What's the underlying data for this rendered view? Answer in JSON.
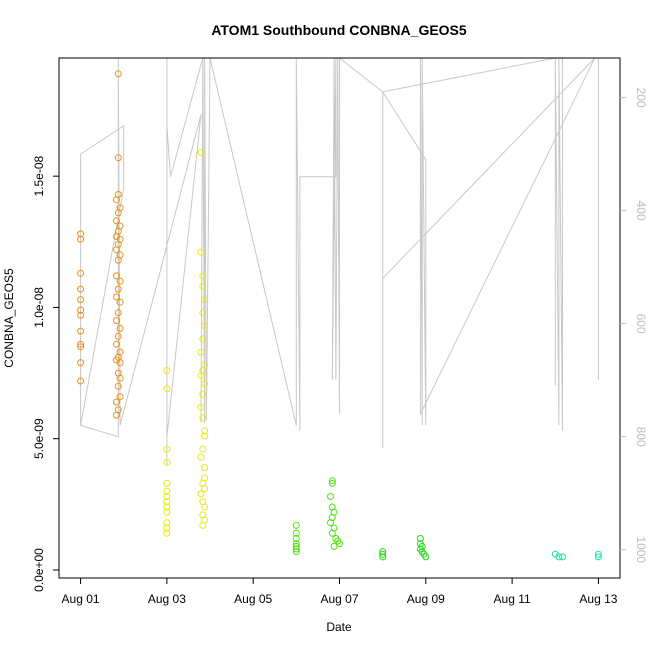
{
  "chart_data": {
    "type": "scatter",
    "title": "ATOM1 Southbound CONBNA_GEOS5",
    "xlabel": "Date",
    "ylabel": "CONBNA_GEOS5",
    "x_axis_kind": "date",
    "xlim": [
      "2016-07-31T12:00",
      "2016-08-13T12:00"
    ],
    "x_ticks": [
      {
        "x": "2016-08-01",
        "label": "Aug 01"
      },
      {
        "x": "2016-08-03",
        "label": "Aug 03"
      },
      {
        "x": "2016-08-05",
        "label": "Aug 05"
      },
      {
        "x": "2016-08-07",
        "label": "Aug 07"
      },
      {
        "x": "2016-08-09",
        "label": "Aug 09"
      },
      {
        "x": "2016-08-11",
        "label": "Aug 11"
      },
      {
        "x": "2016-08-13",
        "label": "Aug 13"
      }
    ],
    "ylim": [
      0,
      1.95e-08
    ],
    "y_ticks": [
      {
        "y": 0,
        "label": "0.0e+00"
      },
      {
        "y": 5e-09,
        "label": "5.0e-09"
      },
      {
        "y": 1e-08,
        "label": "1.0e-08"
      },
      {
        "y": 1.5e-08,
        "label": "1.5e-08"
      }
    ],
    "right_axis": {
      "scale": "reversed",
      "lim": [
        130,
        1050
      ],
      "color": "#bdbdbd",
      "ticks": [
        {
          "y": 200,
          "label": "200"
        },
        {
          "y": 400,
          "label": "400"
        },
        {
          "y": 600,
          "label": "600"
        },
        {
          "y": 800,
          "label": "800"
        },
        {
          "y": 1000,
          "label": "1000"
        }
      ]
    },
    "grid": false,
    "marker": "open-circle",
    "series": [
      {
        "color": "#f0900e",
        "points": [
          [
            "2016-08-01T00:00",
            1.28e-08
          ],
          [
            "2016-08-01T00:00",
            1.26e-08
          ],
          [
            "2016-08-01T00:00",
            1.13e-08
          ],
          [
            "2016-08-01T00:00",
            1.07e-08
          ],
          [
            "2016-08-01T00:00",
            1.03e-08
          ],
          [
            "2016-08-01T00:00",
            9.9e-09
          ],
          [
            "2016-08-01T00:00",
            9.7e-09
          ],
          [
            "2016-08-01T00:00",
            9.1e-09
          ],
          [
            "2016-08-01T00:00",
            8.6e-09
          ],
          [
            "2016-08-01T00:00",
            8.5e-09
          ],
          [
            "2016-08-01T00:00",
            7.9e-09
          ],
          [
            "2016-08-01T00:00",
            7.2e-09
          ],
          [
            "2016-08-01T21:00",
            1.89e-08
          ],
          [
            "2016-08-01T21:00",
            1.57e-08
          ],
          [
            "2016-08-01T21:00",
            1.43e-08
          ],
          [
            "2016-08-01T20:00",
            1.41e-08
          ],
          [
            "2016-08-01T22:00",
            1.38e-08
          ],
          [
            "2016-08-01T21:00",
            1.36e-08
          ],
          [
            "2016-08-01T20:00",
            1.33e-08
          ],
          [
            "2016-08-01T22:00",
            1.31e-08
          ],
          [
            "2016-08-01T21:00",
            1.29e-08
          ],
          [
            "2016-08-01T20:00",
            1.27e-08
          ],
          [
            "2016-08-01T22:00",
            1.26e-08
          ],
          [
            "2016-08-01T21:00",
            1.24e-08
          ],
          [
            "2016-08-01T20:00",
            1.22e-08
          ],
          [
            "2016-08-01T22:00",
            1.2e-08
          ],
          [
            "2016-08-01T21:00",
            1.18e-08
          ],
          [
            "2016-08-01T20:00",
            1.12e-08
          ],
          [
            "2016-08-01T22:00",
            1.1e-08
          ],
          [
            "2016-08-01T21:00",
            1.07e-08
          ],
          [
            "2016-08-01T20:00",
            1.04e-08
          ],
          [
            "2016-08-01T22:00",
            1.02e-08
          ],
          [
            "2016-08-01T21:00",
            9.8e-09
          ],
          [
            "2016-08-01T20:00",
            9.5e-09
          ],
          [
            "2016-08-01T22:00",
            9.2e-09
          ],
          [
            "2016-08-01T21:00",
            8.9e-09
          ],
          [
            "2016-08-01T20:00",
            8.6e-09
          ],
          [
            "2016-08-01T22:00",
            8.3e-09
          ],
          [
            "2016-08-01T21:00",
            8.1e-09
          ],
          [
            "2016-08-01T20:00",
            8e-09
          ],
          [
            "2016-08-01T22:00",
            7.9e-09
          ],
          [
            "2016-08-01T21:00",
            7.5e-09
          ],
          [
            "2016-08-01T22:00",
            7.3e-09
          ],
          [
            "2016-08-01T21:00",
            7e-09
          ],
          [
            "2016-08-01T22:00",
            6.6e-09
          ],
          [
            "2016-08-01T20:00",
            6.4e-09
          ],
          [
            "2016-08-01T21:00",
            6.1e-09
          ],
          [
            "2016-08-01T20:00",
            5.9e-09
          ]
        ]
      },
      {
        "color": "#e6ec0a",
        "points": [
          [
            "2016-08-03T00:00",
            7.6e-09
          ],
          [
            "2016-08-03T00:00",
            6.9e-09
          ],
          [
            "2016-08-03T00:00",
            4.6e-09
          ],
          [
            "2016-08-03T00:00",
            4.1e-09
          ],
          [
            "2016-08-03T00:00",
            3.3e-09
          ],
          [
            "2016-08-03T00:00",
            3e-09
          ],
          [
            "2016-08-03T00:00",
            2.8e-09
          ],
          [
            "2016-08-03T00:00",
            2.6e-09
          ],
          [
            "2016-08-03T00:00",
            2.4e-09
          ],
          [
            "2016-08-03T00:00",
            2.2e-09
          ],
          [
            "2016-08-03T00:00",
            1.8e-09
          ],
          [
            "2016-08-03T00:00",
            1.6e-09
          ],
          [
            "2016-08-03T00:00",
            1.4e-09
          ],
          [
            "2016-08-03T19:00",
            1.59e-08
          ],
          [
            "2016-08-03T19:00",
            1.21e-08
          ],
          [
            "2016-08-03T20:00",
            1.12e-08
          ],
          [
            "2016-08-03T20:00",
            1.08e-08
          ],
          [
            "2016-08-03T21:00",
            1.03e-08
          ],
          [
            "2016-08-03T20:00",
            9.8e-09
          ],
          [
            "2016-08-03T21:00",
            9.3e-09
          ],
          [
            "2016-08-03T20:00",
            8.8e-09
          ],
          [
            "2016-08-03T19:00",
            8.3e-09
          ],
          [
            "2016-08-03T21:00",
            7.8e-09
          ],
          [
            "2016-08-03T20:00",
            7.6e-09
          ],
          [
            "2016-08-03T19:00",
            7.4e-09
          ],
          [
            "2016-08-03T21:00",
            7.1e-09
          ],
          [
            "2016-08-03T20:00",
            6.7e-09
          ],
          [
            "2016-08-03T19:00",
            6.2e-09
          ],
          [
            "2016-08-03T20:00",
            5.8e-09
          ],
          [
            "2016-08-03T21:00",
            5.3e-09
          ],
          [
            "2016-08-03T21:00",
            5.1e-09
          ],
          [
            "2016-08-03T20:00",
            4.6e-09
          ],
          [
            "2016-08-03T19:00",
            4.3e-09
          ],
          [
            "2016-08-03T21:00",
            3.9e-09
          ],
          [
            "2016-08-03T21:00",
            3.5e-09
          ],
          [
            "2016-08-03T20:00",
            3.3e-09
          ],
          [
            "2016-08-03T21:00",
            3.1e-09
          ],
          [
            "2016-08-03T19:00",
            2.9e-09
          ],
          [
            "2016-08-03T20:00",
            2.6e-09
          ],
          [
            "2016-08-03T21:00",
            2.4e-09
          ],
          [
            "2016-08-03T20:00",
            2.1e-09
          ],
          [
            "2016-08-03T21:00",
            1.9e-09
          ],
          [
            "2016-08-03T20:00",
            1.7e-09
          ]
        ]
      },
      {
        "color": "#4ee40c",
        "points": [
          [
            "2016-08-06T00:00",
            1.7e-09
          ],
          [
            "2016-08-06T00:00",
            1.4e-09
          ],
          [
            "2016-08-06T00:00",
            1.2e-09
          ],
          [
            "2016-08-06T00:00",
            1e-09
          ],
          [
            "2016-08-06T00:00",
            9e-10
          ],
          [
            "2016-08-06T00:00",
            8e-10
          ],
          [
            "2016-08-06T00:00",
            7e-10
          ],
          [
            "2016-08-06T20:00",
            3.4e-09
          ],
          [
            "2016-08-06T20:00",
            3.3e-09
          ],
          [
            "2016-08-06T19:00",
            2.8e-09
          ],
          [
            "2016-08-06T20:00",
            2.4e-09
          ],
          [
            "2016-08-06T21:00",
            2.2e-09
          ],
          [
            "2016-08-06T20:00",
            2e-09
          ],
          [
            "2016-08-06T19:00",
            1.8e-09
          ],
          [
            "2016-08-06T21:00",
            1.6e-09
          ],
          [
            "2016-08-06T20:00",
            1.4e-09
          ],
          [
            "2016-08-06T22:00",
            1.2e-09
          ],
          [
            "2016-08-06T23:00",
            1.1e-09
          ],
          [
            "2016-08-07T00:00",
            1e-09
          ],
          [
            "2016-08-06T21:00",
            9e-10
          ]
        ]
      },
      {
        "color": "#22dc14",
        "points": [
          [
            "2016-08-08T00:00",
            7e-10
          ],
          [
            "2016-08-08T00:00",
            6e-10
          ],
          [
            "2016-08-08T00:00",
            5e-10
          ],
          [
            "2016-08-08T21:00",
            1.2e-09
          ],
          [
            "2016-08-08T21:00",
            1e-09
          ],
          [
            "2016-08-08T22:00",
            9e-10
          ],
          [
            "2016-08-08T21:00",
            8e-10
          ],
          [
            "2016-08-08T22:00",
            7e-10
          ],
          [
            "2016-08-08T23:00",
            6e-10
          ],
          [
            "2016-08-09T00:00",
            5e-10
          ]
        ]
      },
      {
        "color": "#14e6a0",
        "points": [
          [
            "2016-08-12T00:00",
            6e-10
          ],
          [
            "2016-08-12T02:00",
            5e-10
          ],
          [
            "2016-08-12T04:00",
            5e-10
          ],
          [
            "2016-08-13T00:00",
            6e-10
          ],
          [
            "2016-08-13T00:00",
            5e-10
          ]
        ]
      }
    ],
    "track_line": {
      "color": "#c8c8c8",
      "axis": "right",
      "points": [
        [
          "2016-08-01T00:00",
          780
        ],
        [
          "2016-08-01T00:00",
          300
        ],
        [
          "2016-08-02T00:00",
          250
        ],
        [
          "2016-08-02T00:00",
          360
        ],
        [
          "2016-08-01T00:00",
          780
        ],
        [
          "2016-08-01T21:00",
          800
        ],
        [
          "2016-08-01T21:00",
          130
        ],
        [
          "2016-08-01T22:00",
          780
        ],
        [
          "2016-08-03T19:00",
          230
        ],
        [
          "2016-08-03T00:00",
          800
        ],
        [
          "2016-08-03T00:00",
          130
        ],
        [
          "2016-08-03T00:00",
          850
        ],
        [
          "2016-08-03T00:00",
          250
        ],
        [
          "2016-08-03T02:00",
          340
        ],
        [
          "2016-08-03T20:00",
          130
        ],
        [
          "2016-08-03T19:00",
          775
        ],
        [
          "2016-08-03T20:00",
          130
        ],
        [
          "2016-08-03T21:00",
          775
        ],
        [
          "2016-08-03T21:00",
          130
        ],
        [
          "2016-08-03T22:00",
          770
        ],
        [
          "2016-08-04T00:00",
          130
        ],
        [
          "2016-08-06T00:00",
          780
        ],
        [
          "2016-08-06T00:00",
          130
        ],
        [
          "2016-08-06T02:00",
          790
        ],
        [
          "2016-08-06T02:00",
          340
        ],
        [
          "2016-08-06T22:00",
          340
        ],
        [
          "2016-08-06T22:00",
          130
        ],
        [
          "2016-08-06T20:00",
          700
        ],
        [
          "2016-08-06T21:00",
          130
        ],
        [
          "2016-08-06T22:00",
          700
        ],
        [
          "2016-08-06T23:00",
          130
        ],
        [
          "2016-08-07T00:00",
          760
        ],
        [
          "2016-08-07T00:00",
          130
        ],
        [
          "2016-08-08T00:00",
          190
        ],
        [
          "2016-08-08T00:00",
          820
        ],
        [
          "2016-08-08T00:00",
          520
        ],
        [
          "2016-08-12T22:00",
          130
        ],
        [
          "2016-08-08T21:00",
          760
        ],
        [
          "2016-08-08T21:00",
          130
        ],
        [
          "2016-08-08T22:00",
          780
        ],
        [
          "2016-08-08T22:00",
          130
        ],
        [
          "2016-08-09T00:00",
          780
        ],
        [
          "2016-08-09T00:00",
          310
        ],
        [
          "2016-08-08T00:00",
          190
        ],
        [
          "2016-08-12T00:00",
          130
        ],
        [
          "2016-08-12T00:00",
          710
        ],
        [
          "2016-08-12T00:00",
          130
        ],
        [
          "2016-08-12T02:00",
          780
        ],
        [
          "2016-08-12T02:00",
          130
        ],
        [
          "2016-08-12T04:00",
          790
        ],
        [
          "2016-08-12T04:00",
          130
        ],
        [
          "2016-08-13T00:00",
          130
        ],
        [
          "2016-08-13T00:00",
          700
        ]
      ]
    }
  }
}
